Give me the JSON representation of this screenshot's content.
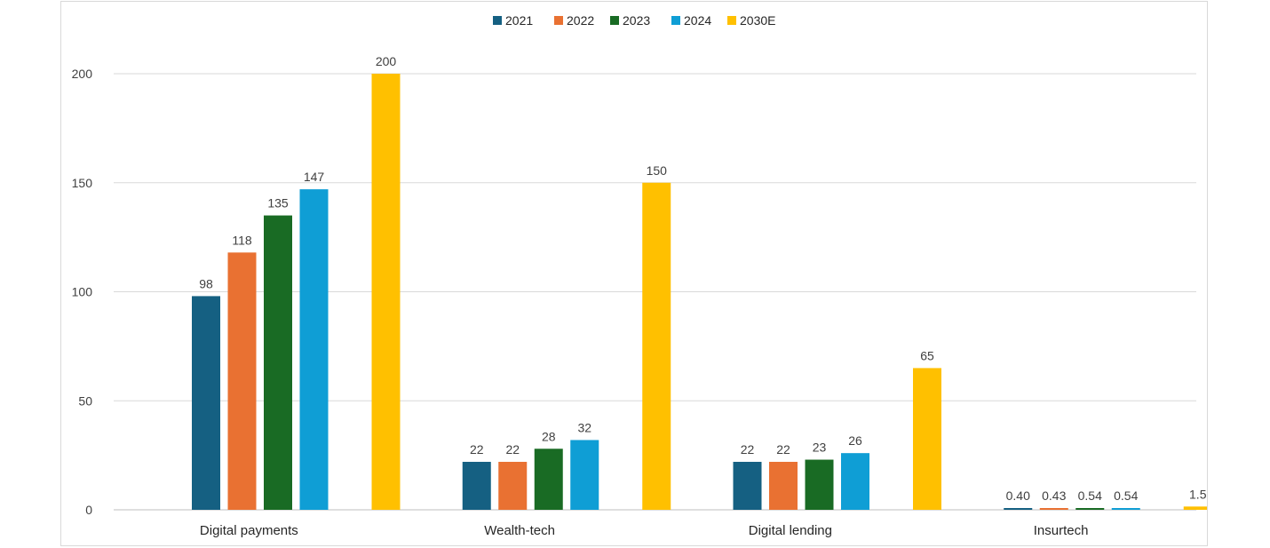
{
  "chart_data": {
    "type": "bar",
    "title": "",
    "xlabel": "",
    "ylabel": "",
    "categories": [
      "Digital payments",
      "Wealth-tech",
      "Digital lending",
      "Insurtech"
    ],
    "series": [
      {
        "name": "2021",
        "color": "#156082",
        "values": [
          98,
          22,
          22,
          0.4
        ],
        "labels": [
          "98",
          "22",
          "22",
          "0.40"
        ]
      },
      {
        "name": "2022",
        "color": "#E97132",
        "values": [
          118,
          22,
          22,
          0.43
        ],
        "labels": [
          "118",
          "22",
          "22",
          "0.43"
        ]
      },
      {
        "name": "2023",
        "color": "#196B24",
        "values": [
          135,
          28,
          23,
          0.54
        ],
        "labels": [
          "135",
          "28",
          "23",
          "0.54"
        ]
      },
      {
        "name": "2024",
        "color": "#0F9ED5",
        "values": [
          147,
          32,
          26,
          0.54
        ],
        "labels": [
          "147",
          "32",
          "26",
          "0.54"
        ]
      },
      {
        "name": "2030E",
        "color": "#FFC000",
        "values": [
          200,
          150,
          65,
          1.5
        ],
        "labels": [
          "200",
          "150",
          "65",
          "1.5"
        ]
      }
    ],
    "ylim": [
      0,
      200
    ],
    "yticks": [
      0,
      50,
      100,
      150,
      200
    ],
    "ytick_labels": [
      "0",
      "50",
      "100",
      "150",
      "200"
    ],
    "grid": true,
    "legend_position": "top-center",
    "data_labels": true
  }
}
